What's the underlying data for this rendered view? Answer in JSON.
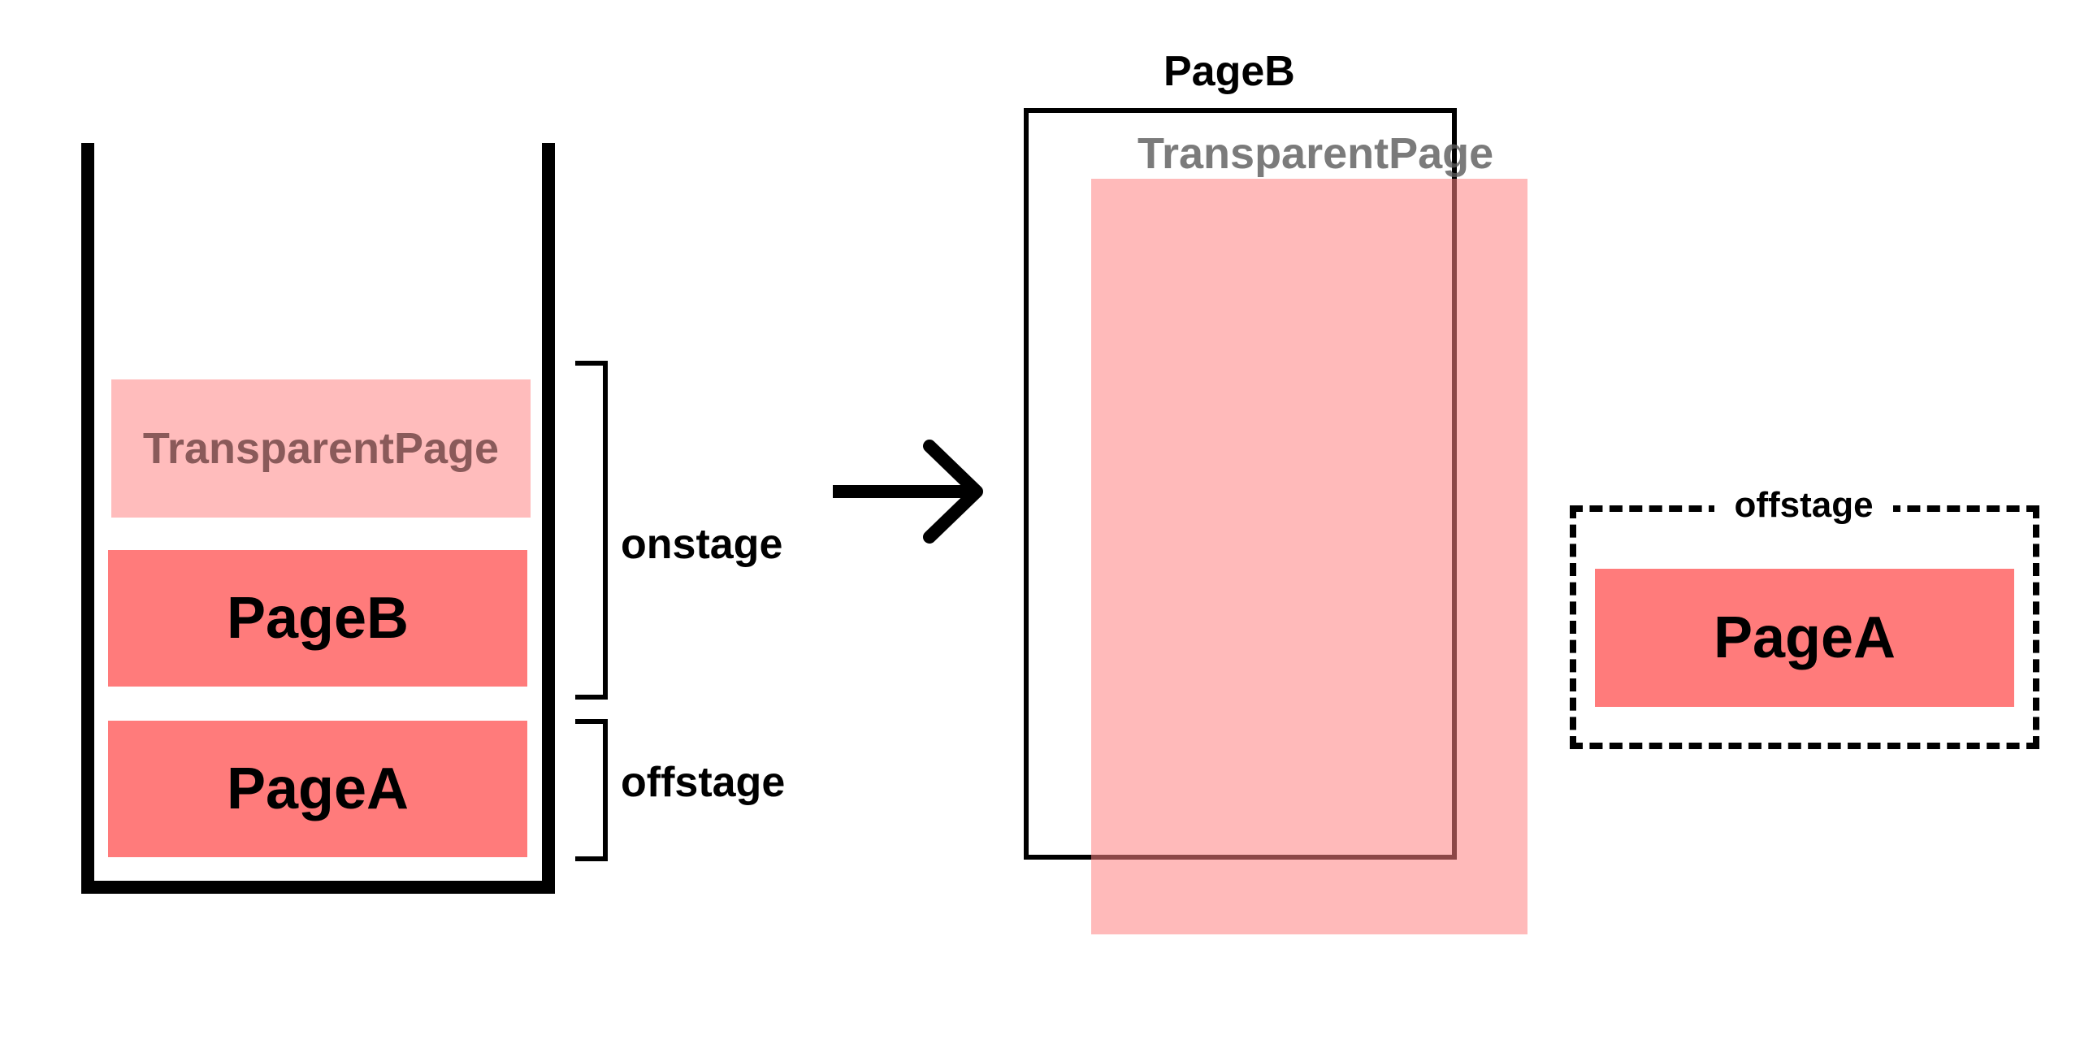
{
  "stack": {
    "transparent_page_label": "TransparentPage",
    "page_b_label": "PageB",
    "page_a_label": "PageA"
  },
  "brackets": {
    "onstage_label": "onstage",
    "offstage_label": "offstage"
  },
  "result": {
    "page_b_title": "PageB",
    "transparent_page_title": "TransparentPage",
    "offstage_group_label": "offstage",
    "offstage_page_label": "PageA"
  },
  "colors": {
    "page_solid": "#ff7b7b",
    "page_transparent": "#ffbcbc",
    "stroke": "#000000"
  }
}
